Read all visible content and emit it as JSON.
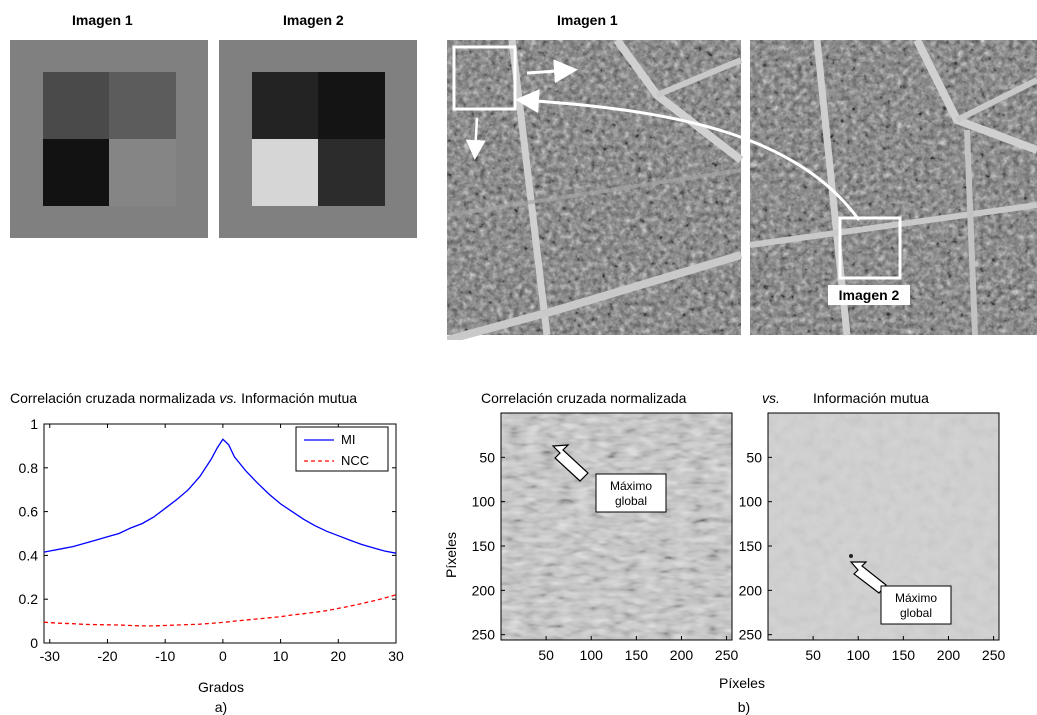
{
  "top_left": {
    "image1_title": "Imagen 1",
    "image2_title": "Imagen 2",
    "image1_quads": [
      "#4a4a4a",
      "#5c5c5c",
      "#121212",
      "#858585"
    ],
    "image2_quads": [
      "#232323",
      "#141414",
      "#d6d6d6",
      "#2c2c2c"
    ],
    "background": "#808080"
  },
  "top_right": {
    "title": "Imagen 1",
    "inset_label": "Imagen 2"
  },
  "chart_data": [
    {
      "type": "line",
      "title_parts": [
        "Correlación cruzada normalizada ",
        "vs.",
        " Información mutua"
      ],
      "xlabel": "Grados",
      "ylabel": "",
      "xlim": [
        -31,
        30
      ],
      "ylim": [
        0,
        1
      ],
      "xticks": [
        -30,
        -20,
        -10,
        0,
        10,
        20,
        30
      ],
      "yticks": [
        0,
        0.2,
        0.4,
        0.6,
        0.8,
        1
      ],
      "legend_position": "top-right",
      "x": [
        -31,
        -30,
        -28,
        -26,
        -24,
        -22,
        -20,
        -18,
        -16,
        -14,
        -12,
        -10,
        -8,
        -6,
        -4,
        -2,
        -1,
        0,
        1,
        2,
        4,
        6,
        8,
        10,
        12,
        14,
        16,
        18,
        20,
        22,
        24,
        26,
        28,
        30
      ],
      "series": [
        {
          "name": "MI",
          "color": "#0000ff",
          "dash": false,
          "values": [
            0.415,
            0.42,
            0.43,
            0.44,
            0.455,
            0.47,
            0.485,
            0.5,
            0.525,
            0.545,
            0.575,
            0.615,
            0.655,
            0.7,
            0.76,
            0.84,
            0.89,
            0.93,
            0.905,
            0.85,
            0.785,
            0.73,
            0.68,
            0.635,
            0.6,
            0.565,
            0.535,
            0.51,
            0.49,
            0.47,
            0.45,
            0.435,
            0.42,
            0.41
          ]
        },
        {
          "name": "NCC",
          "color": "#ff0000",
          "dash": true,
          "values": [
            0.095,
            0.093,
            0.09,
            0.088,
            0.085,
            0.084,
            0.083,
            0.082,
            0.08,
            0.078,
            0.078,
            0.08,
            0.082,
            0.084,
            0.086,
            0.09,
            0.092,
            0.094,
            0.097,
            0.1,
            0.105,
            0.11,
            0.115,
            0.12,
            0.128,
            0.134,
            0.14,
            0.148,
            0.158,
            0.168,
            0.18,
            0.192,
            0.205,
            0.22
          ]
        }
      ],
      "caption": "a)"
    },
    {
      "type": "heatmap",
      "title": "Correlación cruzada normalizada",
      "ylabel": "Píxeles",
      "xticks": [
        50,
        100,
        150,
        200,
        250
      ],
      "yticks": [
        50,
        100,
        150,
        200,
        250
      ],
      "annotation": "Máximo global"
    },
    {
      "type": "heatmap",
      "title": "Información mutua",
      "xticks": [
        50,
        100,
        150,
        200,
        250
      ],
      "yticks": [
        50,
        100,
        150,
        200,
        250
      ],
      "annotation": "Máximo global"
    }
  ],
  "figure_b": {
    "vs_label": "vs.",
    "xlabel": "Píxeles",
    "caption": "b)"
  }
}
